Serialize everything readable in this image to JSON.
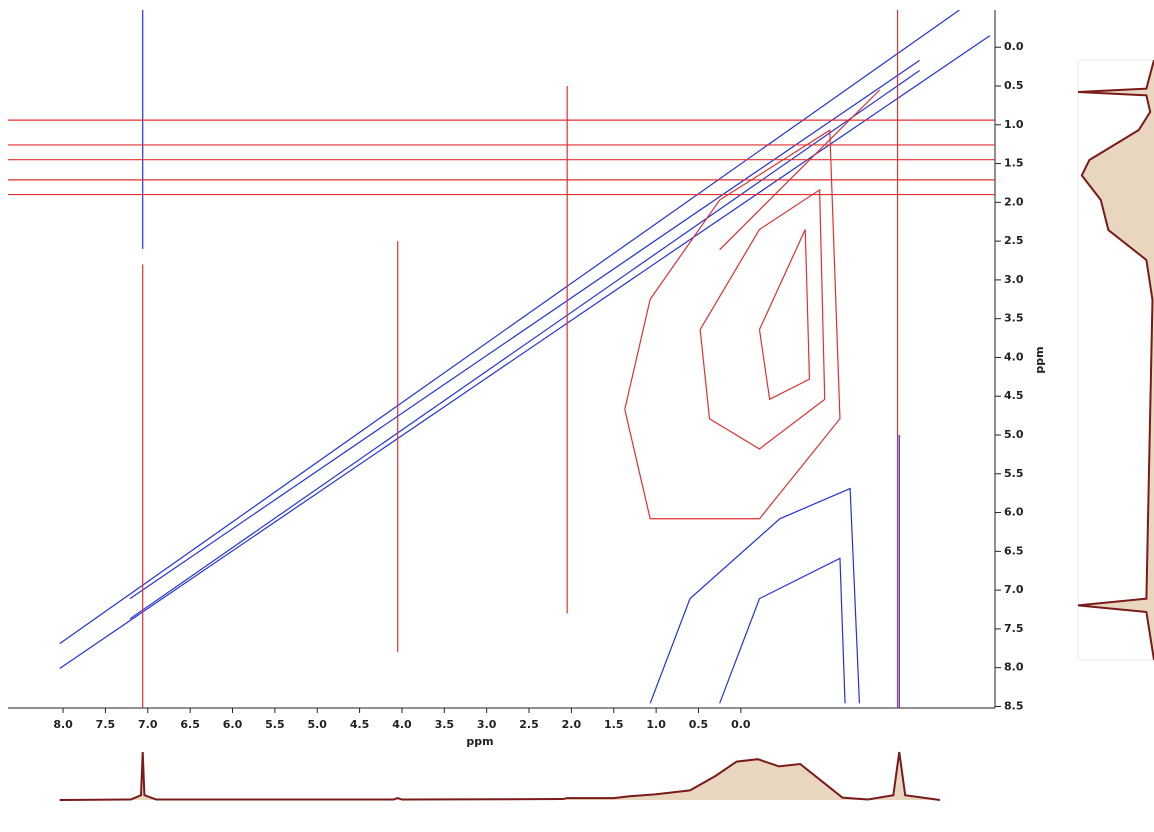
{
  "chart_data": {
    "type": "contour",
    "x_label": "ppm",
    "y_label": "ppm",
    "xlim": [
      8.65,
      -3.0
    ],
    "ylim": [
      -0.48,
      8.52
    ],
    "xticks": [
      {
        "value": 8,
        "label": "8.0"
      },
      7.5,
      {
        "value": 7,
        "label": "7.0"
      },
      6.5,
      {
        "value": 6,
        "label": "6.0"
      },
      5.5,
      {
        "value": 5,
        "label": "5.0"
      },
      4.5,
      {
        "value": 4,
        "label": "4.0"
      },
      3.5,
      {
        "value": 3,
        "label": "3.0"
      },
      2.5,
      {
        "value": 2,
        "label": "2.0"
      },
      1.5,
      {
        "value": 1,
        "label": "1.0"
      },
      0.5,
      {
        "value": 0,
        "label": "0.0"
      }
    ],
    "yticks": [
      {
        "value": 0,
        "label": "0.0"
      },
      0.5,
      {
        "value": 1,
        "label": "1.0"
      },
      1.5,
      {
        "value": 2,
        "label": "2.0"
      },
      2.5,
      {
        "value": 3,
        "label": "3.0"
      },
      3.5,
      {
        "value": 4,
        "label": "4.0"
      },
      4.5,
      {
        "value": 5,
        "label": "5.0"
      },
      5.5,
      {
        "value": 6,
        "label": "6.0"
      },
      6.5,
      {
        "value": 7,
        "label": "7.0"
      },
      7.5,
      {
        "value": 8,
        "label": "8.0"
      },
      8.5
    ],
    "series": [
      {
        "color": "#2233dd",
        "x": [
          8.04,
          -2.94
        ],
        "y": [
          8.01,
          -0.15
        ]
      },
      {
        "color": "#2233dd",
        "x": [
          8.04,
          -2.58
        ],
        "y": [
          7.69,
          -0.48
        ]
      },
      {
        "color": "#2233dd",
        "x": [
          7.21,
          -2.11
        ],
        "y": [
          7.37,
          0.3
        ]
      },
      {
        "color": "#2233dd",
        "x": [
          7.21,
          -2.11
        ],
        "y": [
          7.11,
          0.17
        ]
      },
      {
        "color": "#2233dd",
        "x": [
          7.06,
          7.06
        ],
        "y": [
          -0.48,
          2.6
        ]
      },
      {
        "color": "#2233dd",
        "x": [
          -1.87,
          -1.87
        ],
        "y": [
          5.0,
          8.52
        ]
      },
      {
        "color": "#2233dd",
        "x": [
          1.07,
          0.6,
          -0.46,
          -1.29,
          -1.4
        ],
        "y": [
          8.46,
          7.11,
          6.08,
          5.69,
          8.46
        ]
      },
      {
        "color": "#2233dd",
        "x": [
          0.25,
          -0.22,
          -1.17,
          -1.23
        ],
        "y": [
          8.46,
          7.11,
          6.59,
          8.46
        ]
      },
      {
        "color": "#e03030",
        "x": [
          0.25,
          -1.64
        ],
        "y": [
          2.61,
          0.55
        ]
      },
      {
        "color": "#e03030",
        "x": [
          7.06,
          7.06
        ],
        "y": [
          2.8,
          8.52
        ]
      },
      {
        "color": "#e03030",
        "x": [
          -1.85,
          -1.85
        ],
        "y": [
          -0.48,
          8.52
        ]
      },
      {
        "color": "#e03030",
        "x": [
          4.05,
          4.05
        ],
        "y": [
          2.5,
          7.8
        ]
      },
      {
        "color": "#e03030",
        "x": [
          2.05,
          2.05
        ],
        "y": [
          0.5,
          7.3
        ]
      },
      {
        "color": "#e03030",
        "x": [
          8.65,
          -3.0
        ],
        "y": [
          0.94,
          0.94
        ]
      },
      {
        "color": "#e03030",
        "x": [
          8.65,
          -3.0
        ],
        "y": [
          1.26,
          1.26
        ]
      },
      {
        "color": "#e03030",
        "x": [
          8.65,
          -3.0
        ],
        "y": [
          1.45,
          1.45
        ]
      },
      {
        "color": "#e03030",
        "x": [
          8.65,
          -3.0
        ],
        "y": [
          1.71,
          1.71
        ]
      },
      {
        "color": "#e03030",
        "x": [
          8.65,
          -3.0
        ],
        "y": [
          1.9,
          1.9
        ]
      },
      {
        "color": "#e03030",
        "x": [
          1.37,
          1.07,
          0.25,
          -1.05,
          -1.17,
          -0.22,
          1.07,
          1.37
        ],
        "y": [
          4.67,
          3.25,
          1.97,
          1.07,
          4.79,
          6.08,
          6.08,
          4.67
        ]
      },
      {
        "color": "#e03030",
        "x": [
          0.48,
          -0.22,
          -0.93,
          -0.99,
          -0.22,
          0.37,
          0.48
        ],
        "y": [
          3.64,
          2.35,
          1.84,
          4.54,
          5.18,
          4.79,
          3.64
        ]
      },
      {
        "color": "#e03030",
        "x": [
          -0.22,
          -0.76,
          -0.81,
          -0.34,
          -0.22
        ],
        "y": [
          3.64,
          2.35,
          4.28,
          4.54,
          3.64
        ]
      }
    ],
    "projection": {
      "color": "#7a1a1a",
      "x": [
        8.04,
        7.2,
        7.08,
        7.06,
        7.04,
        6.9,
        4.1,
        4.05,
        4.0,
        2.1,
        2.05,
        1.5,
        1.3,
        1.0,
        0.6,
        0.3,
        0.05,
        -0.2,
        -0.45,
        -0.7,
        -0.95,
        -1.2,
        -1.5,
        -1.8,
        -1.87,
        -1.94,
        -2.35
      ],
      "values": [
        0,
        1,
        10,
        100,
        10,
        1,
        1,
        4,
        1,
        2,
        4,
        4,
        8,
        12,
        20,
        50,
        80,
        85,
        70,
        75,
        40,
        5,
        1,
        10,
        100,
        10,
        0
      ]
    },
    "side_projection": {
      "color": "#7a1a1a",
      "y": [
        -0.48,
        -0.05,
        0.0,
        0.05,
        0.3,
        0.57,
        1.02,
        1.25,
        1.62,
        2.07,
        2.52,
        3.12,
        7.6,
        7.7,
        7.8,
        8.52
      ],
      "values": [
        0,
        10,
        100,
        10,
        5,
        20,
        85,
        95,
        70,
        60,
        10,
        2,
        10,
        100,
        10,
        0
      ]
    }
  }
}
